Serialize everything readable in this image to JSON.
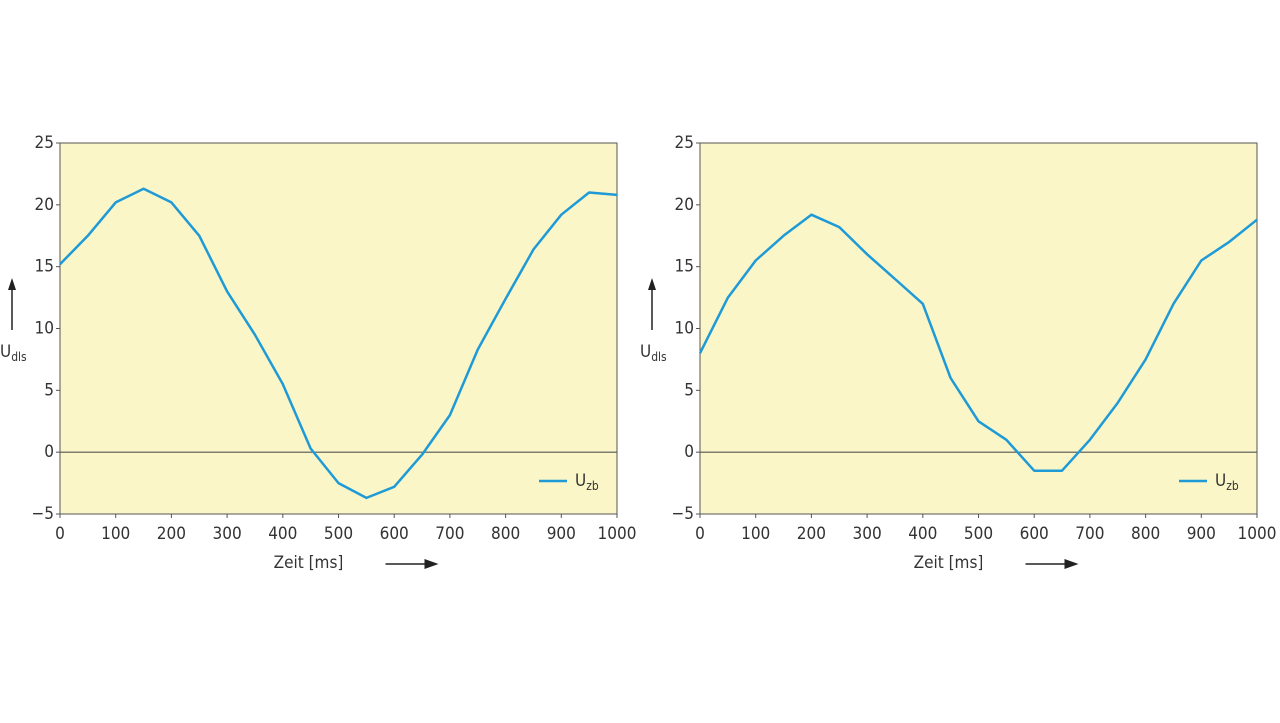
{
  "chart_data": [
    {
      "type": "line",
      "x_label": "Zeit [ms]",
      "y_label": {
        "main": "U",
        "sub": "dls"
      },
      "x": [
        0,
        50,
        100,
        150,
        200,
        250,
        300,
        350,
        400,
        450,
        500,
        550,
        600,
        650,
        700,
        750,
        800,
        850,
        900,
        950,
        1000
      ],
      "series": [
        {
          "name": "U",
          "name_sub": "zb",
          "color": "#1e9ad6",
          "values": [
            15.2,
            17.5,
            20.2,
            21.3,
            20.2,
            17.5,
            13,
            9.5,
            5.5,
            0.3,
            -2.5,
            -3.7,
            -2.8,
            -0.2,
            3,
            8.3,
            12.4,
            16.4,
            19.2,
            21,
            20.8
          ]
        }
      ],
      "xlim": [
        0,
        1000
      ],
      "xticks": [
        0,
        100,
        200,
        300,
        400,
        500,
        600,
        700,
        800,
        900,
        1000
      ],
      "ylim": [
        -5,
        25
      ],
      "yticks": [
        {
          "value": -5,
          "label": "−5"
        },
        0,
        5,
        10,
        15,
        20,
        25
      ],
      "zero_line": true,
      "legend": "lower right",
      "background": "#faf6c8"
    },
    {
      "type": "line",
      "x_label": "Zeit [ms]",
      "y_label": {
        "main": "U",
        "sub": "dls"
      },
      "x": [
        0,
        50,
        100,
        150,
        200,
        250,
        300,
        350,
        400,
        450,
        500,
        550,
        600,
        650,
        700,
        750,
        800,
        850,
        900,
        950,
        1000
      ],
      "series": [
        {
          "name": "U",
          "name_sub": "zb",
          "color": "#1e9ad6",
          "values": [
            8,
            12.5,
            15.5,
            17.5,
            19.2,
            18.2,
            16,
            14,
            12,
            6,
            2.5,
            1,
            -1.5,
            -1.5,
            1,
            4,
            7.5,
            12,
            15.5,
            17,
            18.8
          ]
        }
      ],
      "xlim": [
        0,
        1000
      ],
      "xticks": [
        0,
        100,
        200,
        300,
        400,
        500,
        600,
        700,
        800,
        900,
        1000
      ],
      "ylim": [
        -5,
        25
      ],
      "yticks": [
        {
          "value": -5,
          "label": "−5"
        },
        0,
        5,
        10,
        15,
        20,
        25
      ],
      "zero_line": true,
      "legend": "lower right",
      "background": "#faf6c8"
    }
  ]
}
